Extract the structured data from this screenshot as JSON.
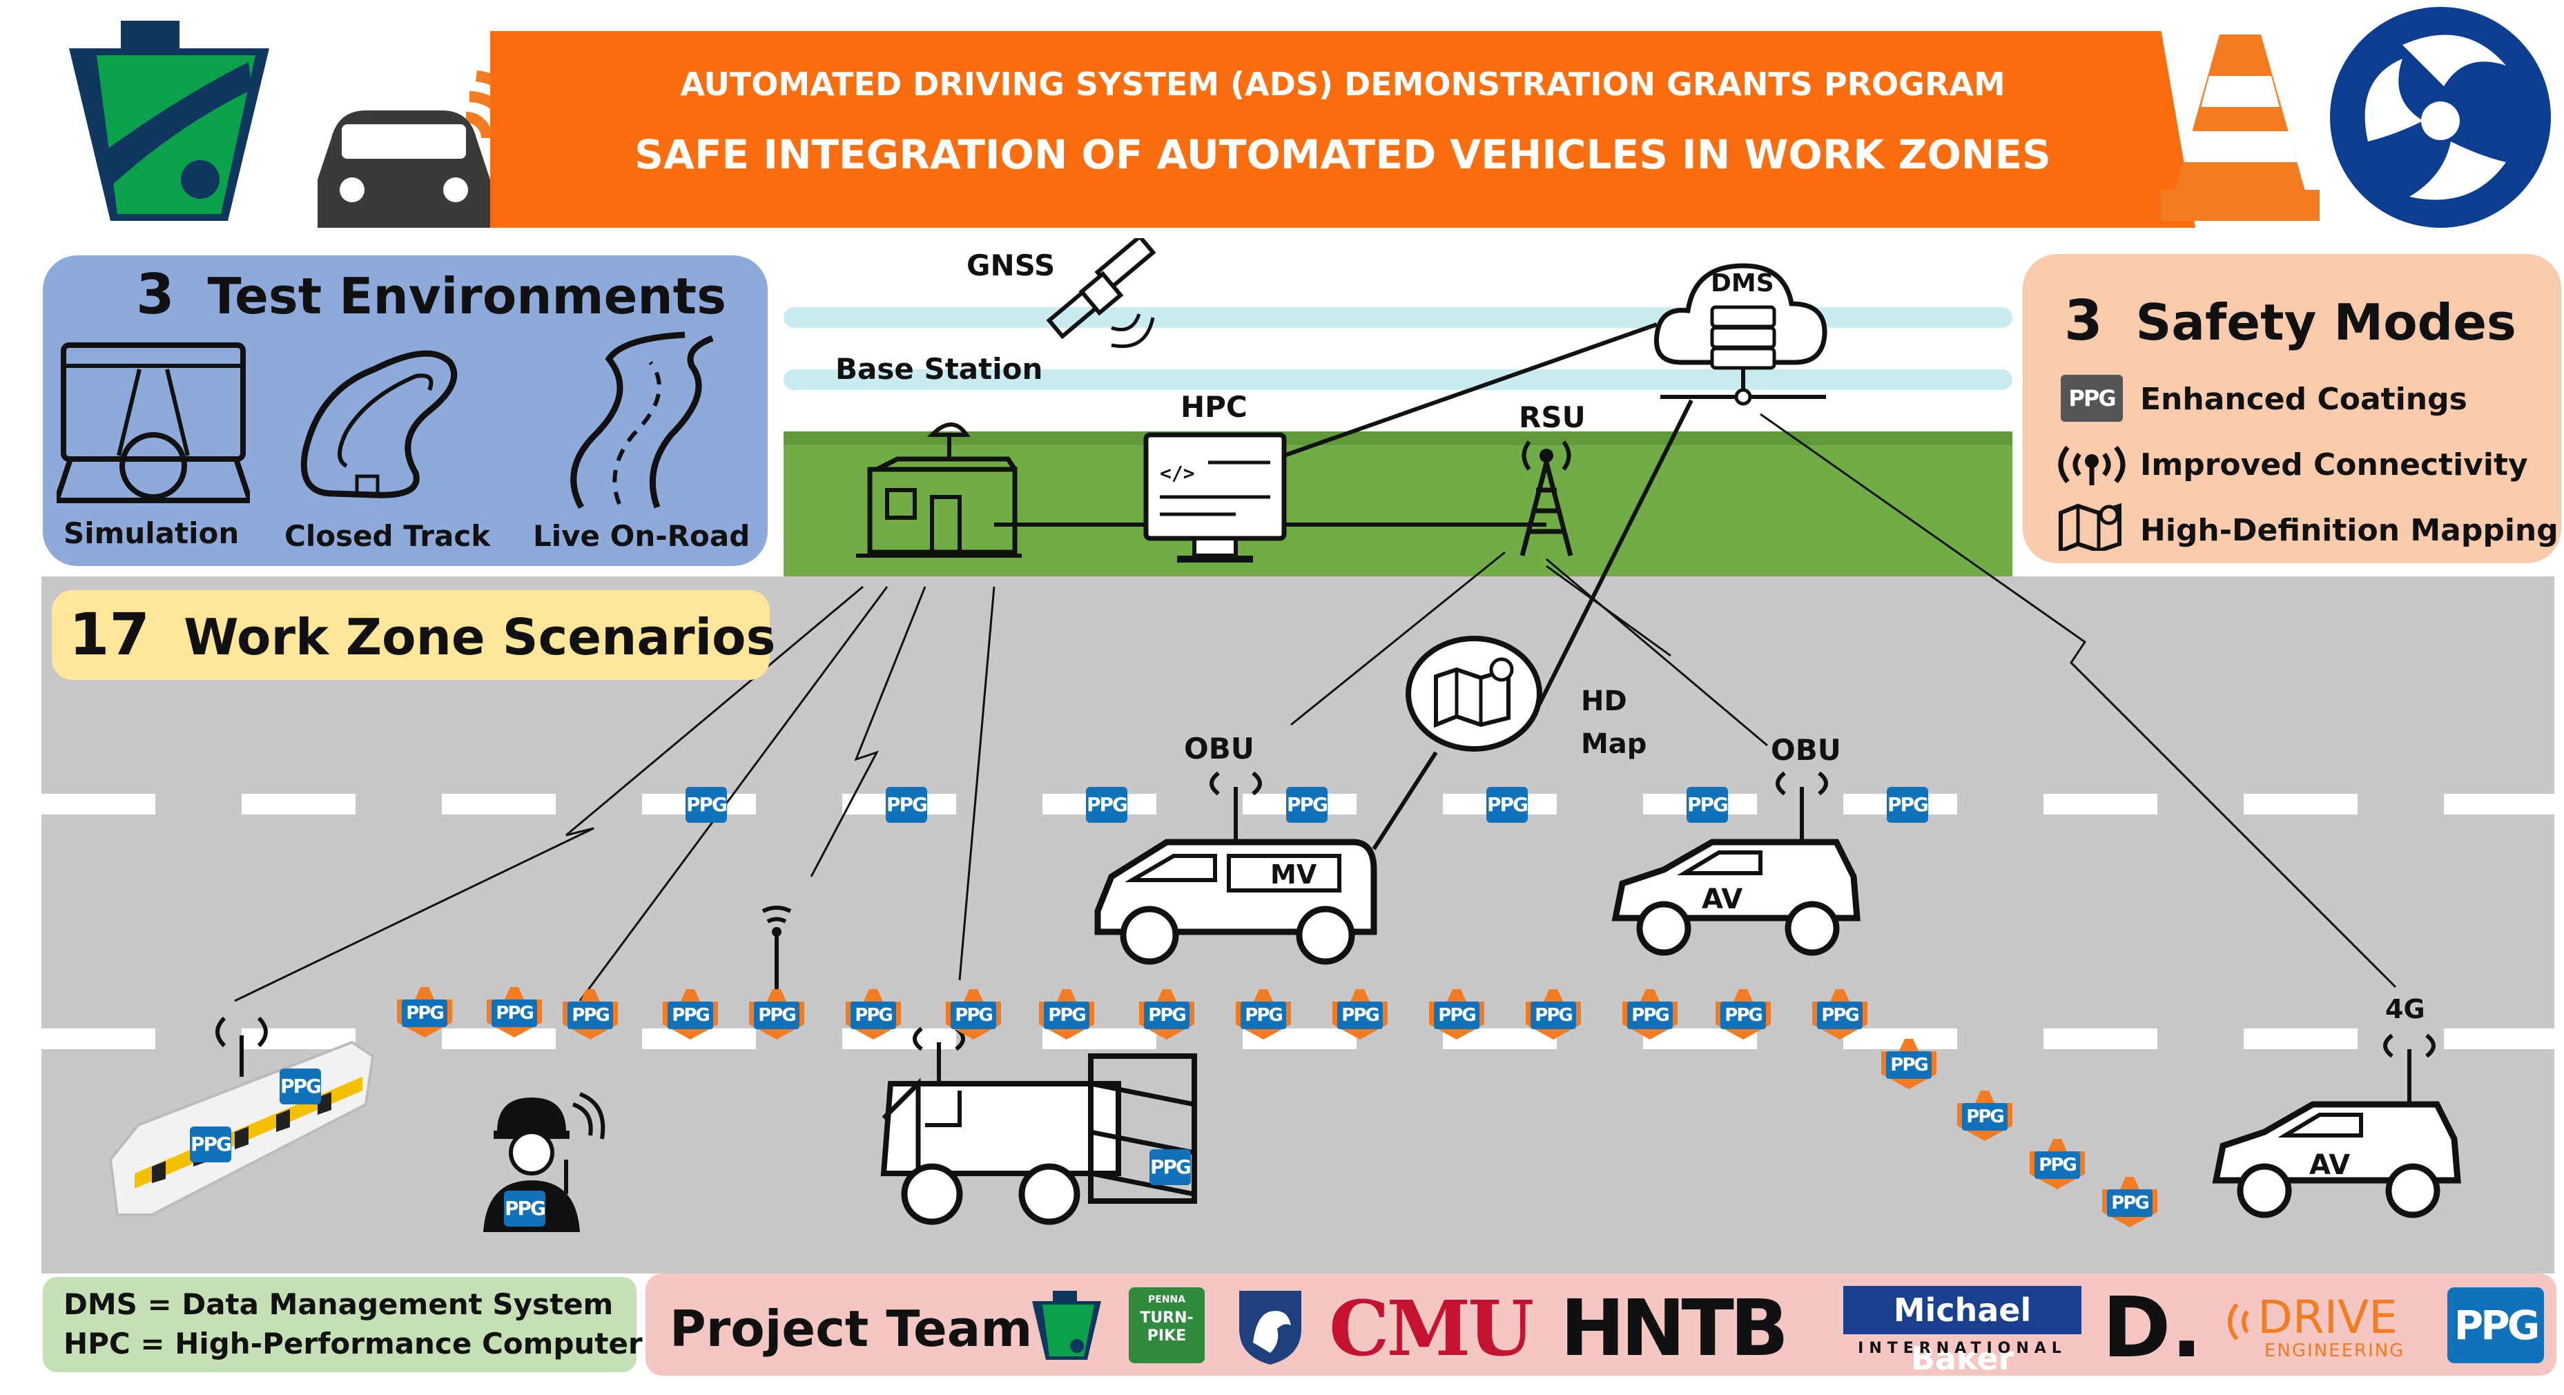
{
  "banner": {
    "line1": "AUTOMATED DRIVING SYSTEM (ADS) DEMONSTRATION GRANTS PROGRAM",
    "line2": "SAFE INTEGRATION OF AUTOMATED VEHICLES IN WORK ZONES"
  },
  "test_environments": {
    "count": "3",
    "title": "Test Environments",
    "items": [
      "Simulation",
      "Closed Track",
      "Live On-Road"
    ]
  },
  "safety_modes": {
    "count": "3",
    "title": "Safety Modes",
    "items": [
      "Enhanced Coatings",
      "Improved Connectivity",
      "High-Definition Mapping"
    ]
  },
  "scenarios": {
    "count": "17",
    "title": "Work Zone Scenarios"
  },
  "infrastructure": {
    "gnss": "GNSS",
    "base_station": "Base Station",
    "hpc": "HPC",
    "dms": "DMS",
    "rsu": "RSU",
    "hd_map": "HD Map",
    "obu_left": "OBU",
    "obu_right": "OBU",
    "fourg": "4G"
  },
  "vehicles": {
    "mv": "MV",
    "av1": "AV",
    "av2": "AV"
  },
  "ppg": "PPG",
  "legend": {
    "dms": "DMS = Data Management System",
    "hpc": "HPC = High-Performance Computer"
  },
  "team": {
    "title": "Project Team",
    "turnpike_top": "PENNA",
    "turnpike": "TURN-PIKE",
    "cmu": "CMU",
    "hntb": "HNTB",
    "michael_baker": "Michael Baker",
    "international": "INTERNATIONAL",
    "d": "D.",
    "drive": "DRIVE",
    "engineering": "ENGINEERING",
    "ppg": "PPG"
  },
  "colors": {
    "banner": "#fb6e10",
    "test_env_panel": "#8eaadb",
    "safety_panel": "#f8cbad",
    "scenario_panel": "#ffe699",
    "road": "#c8c8c8",
    "grass": "#70ad47",
    "ppg_blue": "#0f72bb",
    "legend_panel": "#c5e0b4",
    "team_panel": "#f4c7c3"
  }
}
